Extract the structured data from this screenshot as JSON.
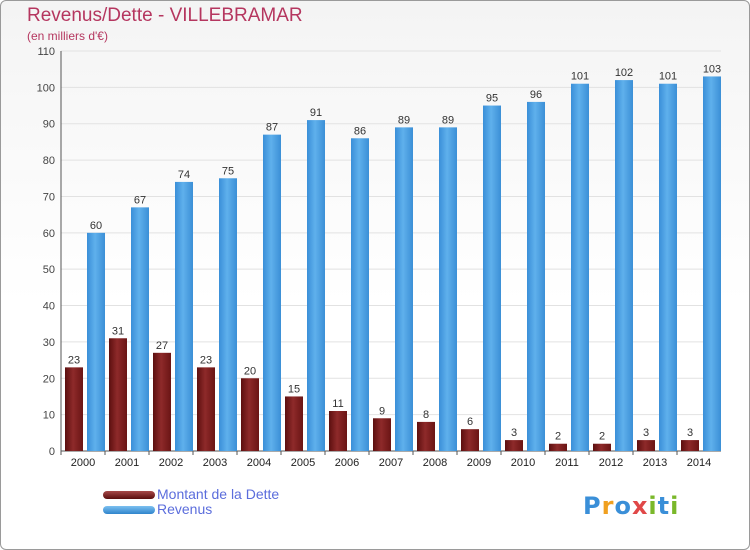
{
  "chart_data": {
    "type": "bar",
    "title": "Revenus/Dette - VILLEBRAMAR",
    "subtitle": "(en milliers d'€)",
    "categories": [
      "2000",
      "2001",
      "2002",
      "2003",
      "2004",
      "2005",
      "2006",
      "2007",
      "2008",
      "2009",
      "2010",
      "2011",
      "2012",
      "2013",
      "2014"
    ],
    "series": [
      {
        "name": "Montant de la Dette",
        "color": "#7a1a1a",
        "values": [
          23,
          31,
          27,
          23,
          20,
          15,
          11,
          9,
          8,
          6,
          3,
          2,
          2,
          3,
          3
        ]
      },
      {
        "name": "Revenus",
        "color": "#4a9fe0",
        "values": [
          60,
          67,
          74,
          75,
          87,
          91,
          86,
          89,
          89,
          95,
          96,
          101,
          102,
          101,
          103
        ]
      }
    ],
    "yticks": [
      0,
      10,
      20,
      30,
      40,
      50,
      60,
      70,
      80,
      90,
      100,
      110
    ],
    "ylim": [
      0,
      110
    ],
    "grid": true,
    "legend_position": "bottom-left"
  },
  "logo": {
    "letters": [
      "P",
      "r",
      "o",
      "x",
      "i",
      "t",
      "i"
    ],
    "colors": [
      "#3a8fd8",
      "#f0a020",
      "#3a8fd8",
      "#e04848",
      "#7ab82a",
      "#3a8fd8",
      "#7ab82a"
    ]
  }
}
